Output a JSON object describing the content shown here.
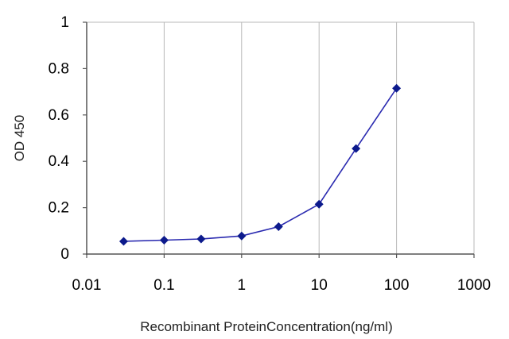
{
  "chart_data": {
    "type": "line",
    "title": "",
    "xlabel": "Recombinant ProteinConcentration(ng/ml)",
    "ylabel": "OD 450",
    "x_scale": "log",
    "xlim": [
      0.01,
      1000
    ],
    "ylim": [
      0,
      1
    ],
    "x_ticks": [
      0.01,
      0.1,
      1,
      10,
      100,
      1000
    ],
    "x_tick_labels": [
      "0.01",
      "0.1",
      "1",
      "10",
      "100",
      "1000"
    ],
    "y_ticks": [
      0,
      0.2,
      0.4,
      0.6,
      0.8,
      1
    ],
    "y_tick_labels": [
      "0",
      "0.2",
      "0.4",
      "0.6",
      "0.8",
      "1"
    ],
    "grid": "vertical",
    "legend": "none",
    "series": [
      {
        "color": "#2a2ab0",
        "marker_color": "#0c1a8c",
        "marker": "diamond",
        "x": [
          0.03,
          0.1,
          0.3,
          1,
          3,
          10,
          30,
          100
        ],
        "y": [
          0.055,
          0.06,
          0.065,
          0.078,
          0.118,
          0.215,
          0.455,
          0.715
        ]
      }
    ]
  }
}
